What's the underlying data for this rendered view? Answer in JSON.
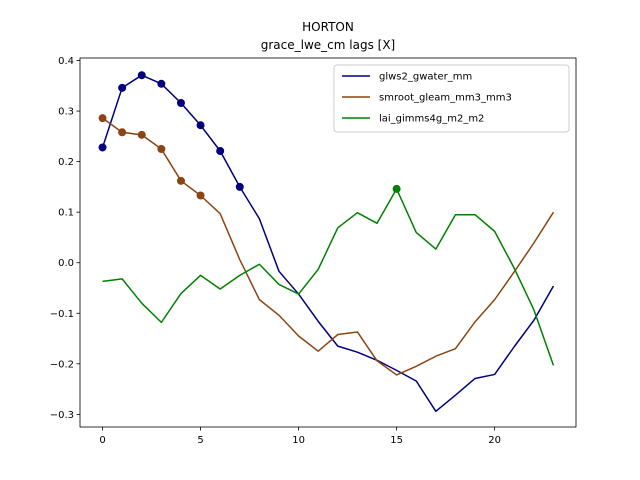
{
  "chart_data": {
    "type": "line",
    "title": "HORTON",
    "subtitle": "grace_lwe_cm lags [X]",
    "xlabel": "",
    "ylabel": "",
    "xlim": [
      -1.15,
      24.15
    ],
    "ylim": [
      -0.325,
      0.405
    ],
    "x_ticks": [
      0,
      5,
      10,
      15,
      20
    ],
    "y_ticks": [
      -0.3,
      -0.2,
      -0.1,
      0.0,
      0.1,
      0.2,
      0.3,
      0.4
    ],
    "x_tick_labels": [
      "0",
      "5",
      "10",
      "15",
      "20"
    ],
    "y_tick_labels": [
      "−0.3",
      "−0.2",
      "−0.1",
      "0.0",
      "0.1",
      "0.2",
      "0.3",
      "0.4"
    ],
    "grid": false,
    "legend_position": "top-right",
    "x": [
      0,
      1,
      2,
      3,
      4,
      5,
      6,
      7,
      8,
      9,
      10,
      11,
      12,
      13,
      14,
      15,
      16,
      17,
      18,
      19,
      20,
      21,
      22,
      23
    ],
    "series": [
      {
        "name": "glws2_gwater_mm",
        "color": "#00007f",
        "values": [
          0.228,
          0.346,
          0.371,
          0.354,
          0.316,
          0.272,
          0.221,
          0.15,
          0.087,
          -0.017,
          -0.062,
          -0.116,
          -0.165,
          -0.177,
          -0.193,
          -0.213,
          -0.234,
          -0.294,
          -0.262,
          -0.229,
          -0.221,
          -0.166,
          -0.114,
          -0.046
        ],
        "marker_indices": [
          0,
          1,
          2,
          3,
          4,
          5,
          6,
          7
        ]
      },
      {
        "name": "smroot_gleam_mm3_mm3",
        "color": "#8b4513",
        "values": [
          0.286,
          0.258,
          0.253,
          0.225,
          0.162,
          0.133,
          0.097,
          0.006,
          -0.073,
          -0.104,
          -0.145,
          -0.175,
          -0.142,
          -0.137,
          -0.194,
          -0.222,
          -0.205,
          -0.185,
          -0.17,
          -0.117,
          -0.073,
          -0.018,
          0.039,
          0.1
        ],
        "marker_indices": [
          0,
          1,
          2,
          3,
          4,
          5
        ]
      },
      {
        "name": "lai_gimms4g_m2_m2",
        "color": "#008000",
        "values": [
          -0.037,
          -0.032,
          -0.08,
          -0.118,
          -0.061,
          -0.025,
          -0.052,
          -0.025,
          -0.003,
          -0.043,
          -0.062,
          -0.013,
          0.069,
          0.099,
          0.078,
          0.146,
          0.06,
          0.027,
          0.095,
          0.095,
          0.062,
          -0.011,
          -0.093,
          -0.203
        ],
        "marker_indices": [
          15
        ]
      }
    ]
  }
}
